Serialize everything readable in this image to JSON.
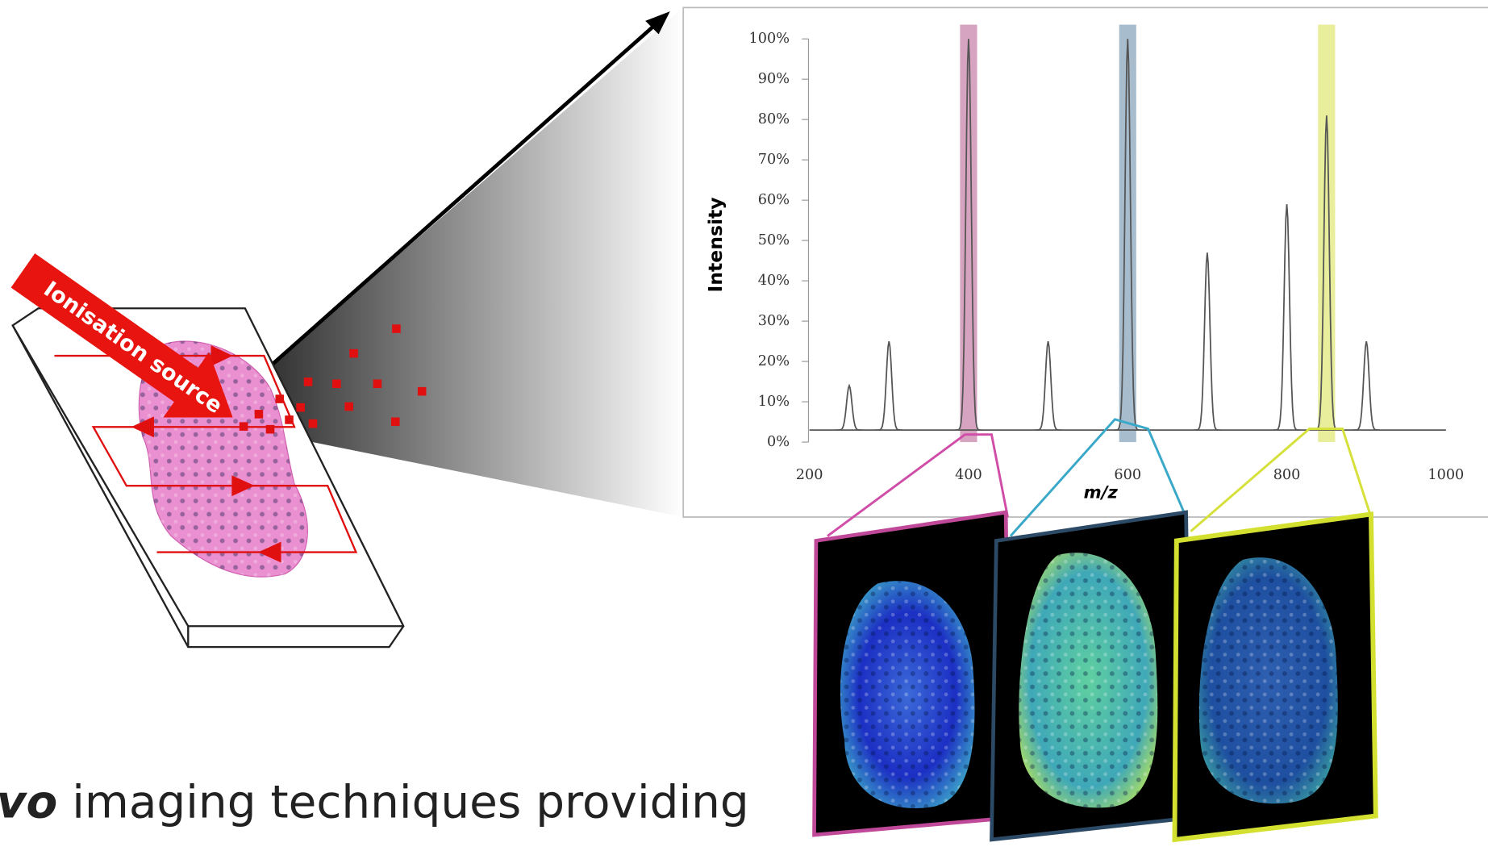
{
  "label": "Ionisation source",
  "caption": {
    "emphasis": "vo",
    "text": " imaging techniques providing"
  },
  "chart_data": {
    "type": "spectrum",
    "x_label": "m/z",
    "y_label": "Intensity",
    "x": [
      250,
      300,
      400,
      500,
      600,
      700,
      800,
      850,
      900
    ],
    "values": [
      14,
      25,
      100,
      25,
      100,
      47,
      59,
      81,
      25
    ],
    "baseline": 3,
    "color": "#555555",
    "highlights": [
      {
        "x": 400,
        "color": "#b5588e"
      },
      {
        "x": 600,
        "color": "#5f86a6"
      },
      {
        "x": 850,
        "color": "#d6e04a"
      }
    ],
    "xlim": [
      200,
      1000
    ],
    "xticks": [
      200,
      400,
      600,
      800,
      1000
    ],
    "ylim": [
      0,
      100
    ],
    "yticks": [
      {
        "value": 0,
        "label": "0%"
      },
      {
        "value": 10,
        "label": "10%"
      },
      {
        "value": 20,
        "label": "20%"
      },
      {
        "value": 30,
        "label": "30%"
      },
      {
        "value": 40,
        "label": "40%"
      },
      {
        "value": 50,
        "label": "50%"
      },
      {
        "value": 60,
        "label": "60%"
      },
      {
        "value": 70,
        "label": "70%"
      },
      {
        "value": 80,
        "label": "80%"
      },
      {
        "value": 90,
        "label": "90%"
      },
      {
        "value": 100,
        "label": "100%"
      }
    ]
  }
}
